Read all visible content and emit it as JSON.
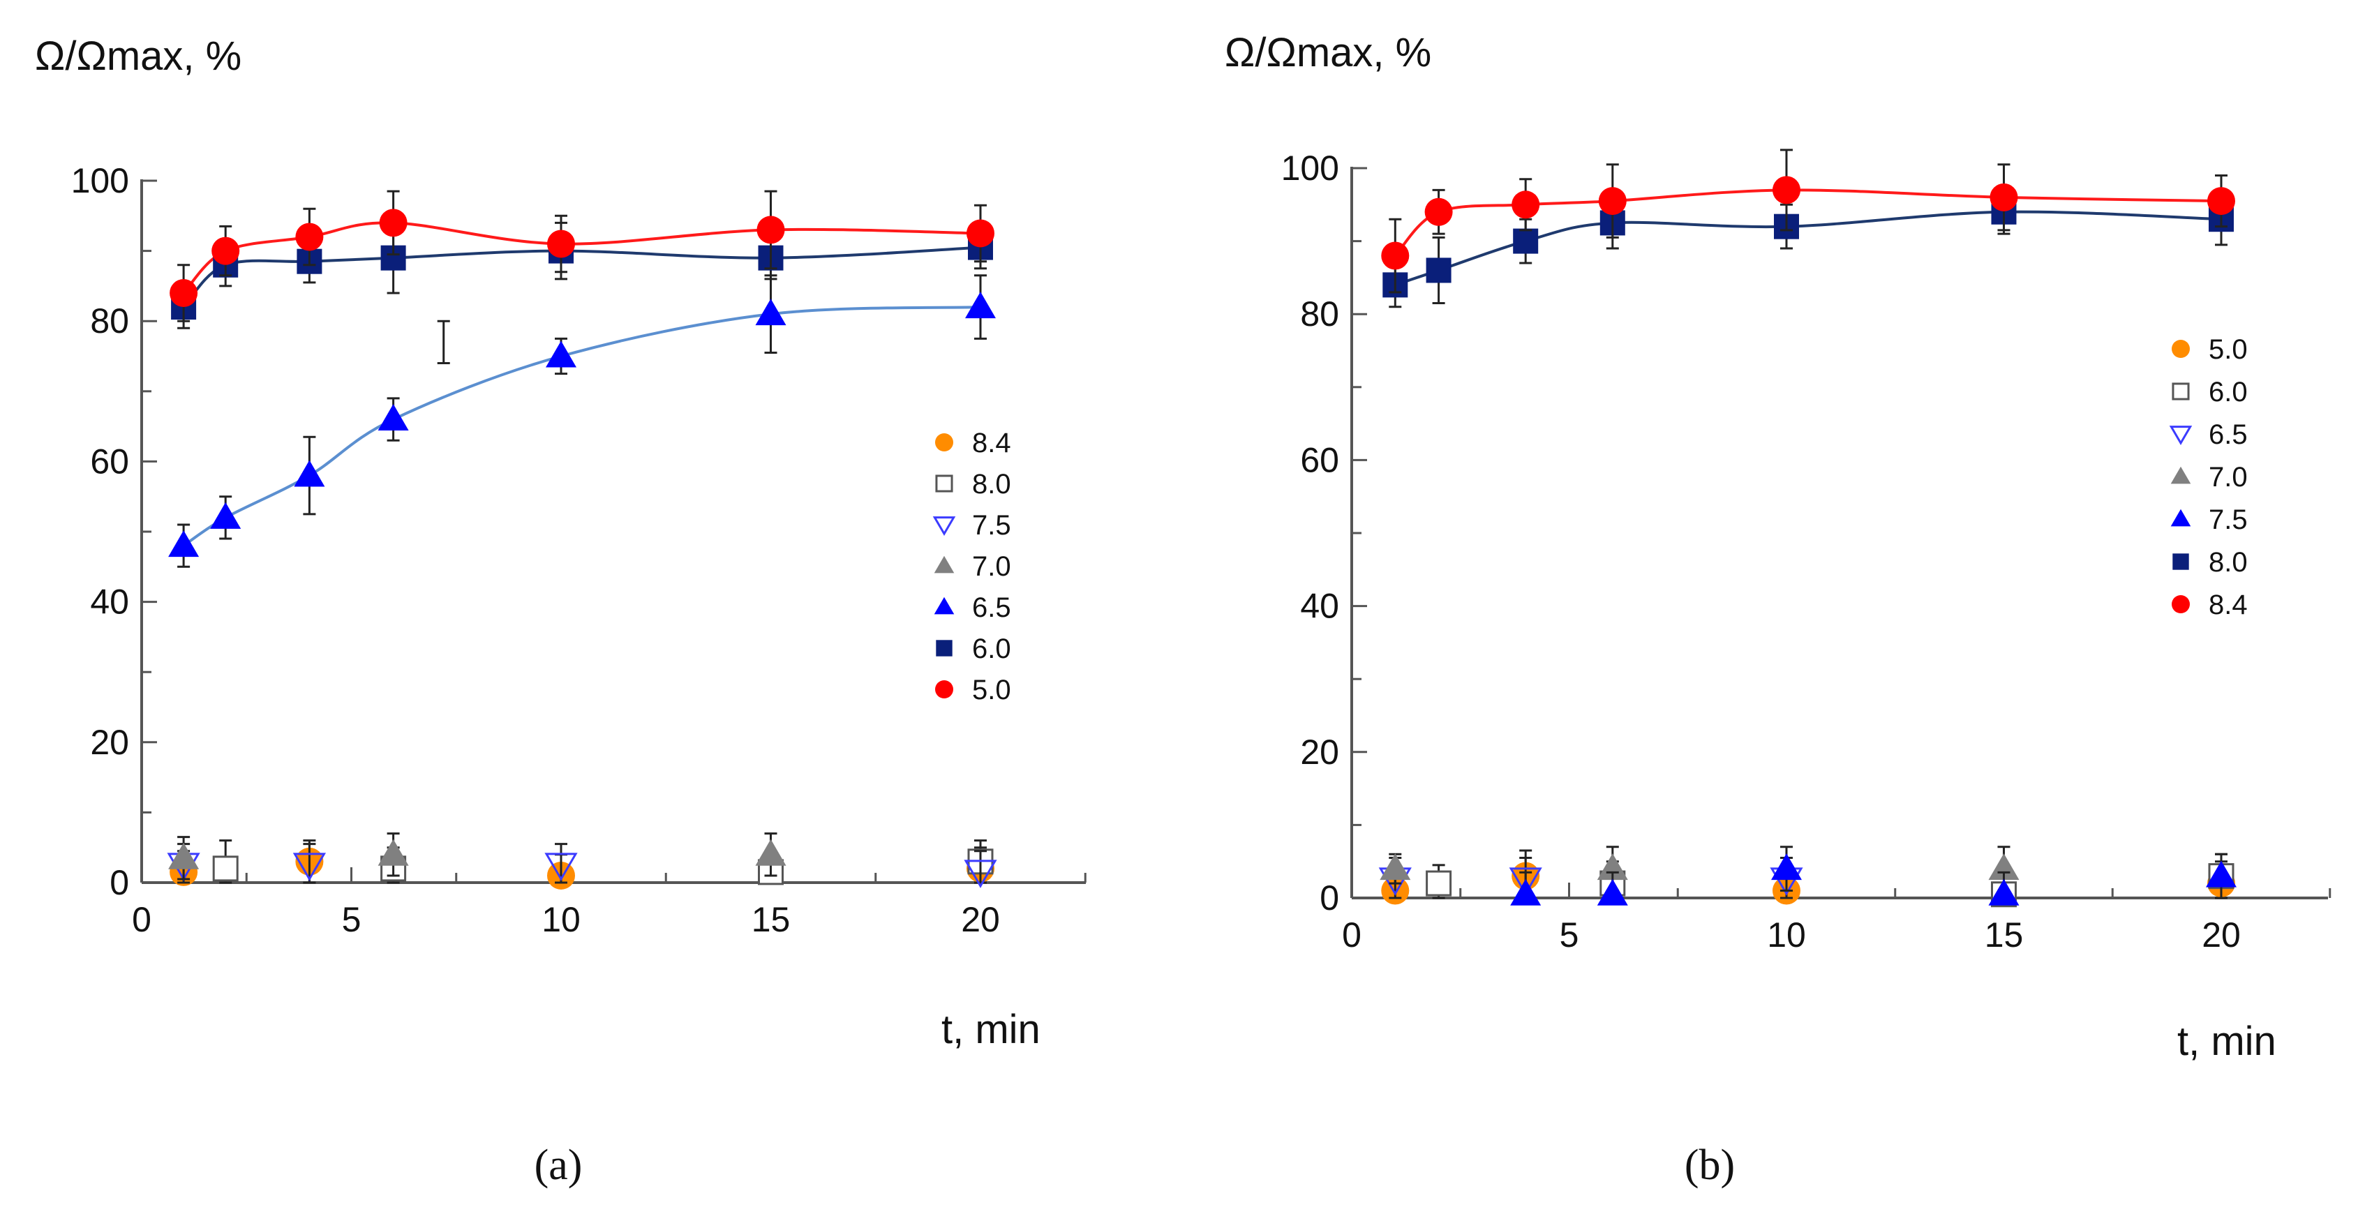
{
  "chart_data": [
    {
      "type": "scatter",
      "panel_label": "(a)",
      "ylabel": "Ω/Ωmax, %",
      "xlabel": "t, min",
      "xlim": [
        0,
        22.5
      ],
      "ylim": [
        0,
        100
      ],
      "xticks": [
        0,
        5,
        10,
        15,
        20
      ],
      "yticks": [
        0,
        20,
        40,
        60,
        80,
        100
      ],
      "legend_position": "right",
      "legend_order": [
        "8.4",
        "8.0",
        "7.5",
        "7.0",
        "6.5",
        "6.0",
        "5.0"
      ],
      "series": [
        {
          "name": "8.4",
          "marker": "circle",
          "color": "#ff8c00",
          "fit": false,
          "x": [
            1,
            4,
            10,
            20
          ],
          "y": [
            1.5,
            3,
            1,
            2
          ],
          "err": [
            3,
            3,
            3,
            3
          ]
        },
        {
          "name": "8.0",
          "marker": "square-open",
          "color": "#555555",
          "fit": false,
          "x": [
            2,
            6,
            15,
            20
          ],
          "y": [
            2,
            2,
            1.5,
            3
          ],
          "err": [
            4,
            3,
            3,
            3
          ]
        },
        {
          "name": "7.5",
          "marker": "triangle-down-open",
          "color": "#3b3bff",
          "fit": false,
          "x": [
            1,
            4,
            10,
            20
          ],
          "y": [
            2.5,
            2.5,
            2.5,
            1.5
          ],
          "err": [
            3,
            3,
            3,
            3
          ]
        },
        {
          "name": "7.0",
          "marker": "triangle",
          "color": "#808080",
          "fit": false,
          "x": [
            1,
            6,
            15
          ],
          "y": [
            3.5,
            4,
            4
          ],
          "err": [
            3,
            3,
            3
          ]
        },
        {
          "name": "6.5",
          "marker": "triangle",
          "color": "#0000ff",
          "fit": true,
          "fit_color": "#5b8fd0",
          "x": [
            1,
            2,
            4,
            6,
            10,
            15,
            20
          ],
          "y": [
            48,
            52,
            58,
            66,
            75,
            81,
            82
          ],
          "err": [
            3,
            3,
            5.5,
            3,
            2.5,
            5.5,
            4.5
          ]
        },
        {
          "name": "6.0",
          "marker": "square",
          "color": "#0a1f7a",
          "fit": true,
          "fit_color": "#1f3a6e",
          "x": [
            1,
            2,
            4,
            6,
            10,
            15,
            20
          ],
          "y": [
            82,
            88,
            88.5,
            89,
            90,
            89,
            90.5
          ],
          "err": [
            3,
            3,
            3,
            5,
            4,
            3,
            3
          ]
        },
        {
          "name": "5.0",
          "marker": "circle",
          "color": "#ff0000",
          "fit": true,
          "fit_color": "#ff1a1a",
          "x": [
            1,
            2,
            4,
            6,
            10,
            15,
            20
          ],
          "y": [
            84,
            90,
            92,
            94,
            91,
            93,
            92.5
          ],
          "err": [
            4,
            3.5,
            4,
            4.5,
            4,
            5.5,
            4
          ]
        }
      ],
      "stray_errorbar": {
        "x": 7.2,
        "y_low": 74,
        "y_high": 80
      }
    },
    {
      "type": "scatter",
      "panel_label": "(b)",
      "ylabel": "Ω/Ωmax, %",
      "xlabel": "t, min",
      "xlim": [
        0,
        22.5
      ],
      "ylim": [
        0,
        100
      ],
      "xticks": [
        0,
        5,
        10,
        15,
        20
      ],
      "yticks": [
        0,
        20,
        40,
        60,
        80,
        100
      ],
      "legend_position": "right",
      "legend_order": [
        "5.0",
        "6.0",
        "6.5",
        "7.0",
        "7.5",
        "8.0",
        "8.4"
      ],
      "series": [
        {
          "name": "5.0",
          "marker": "circle",
          "color": "#ff8c00",
          "fit": false,
          "x": [
            1,
            4,
            10,
            20
          ],
          "y": [
            1,
            3,
            1,
            2
          ],
          "err": [
            3,
            3.5,
            3,
            3
          ]
        },
        {
          "name": "6.0",
          "marker": "square-open",
          "color": "#555555",
          "fit": false,
          "x": [
            2,
            6,
            15,
            20
          ],
          "y": [
            2,
            2,
            0.5,
            3
          ],
          "err": [
            2.5,
            3,
            3,
            3
          ]
        },
        {
          "name": "6.5",
          "marker": "triangle-down-open",
          "color": "#3b3bff",
          "fit": false,
          "x": [
            1,
            4,
            10
          ],
          "y": [
            2.5,
            2.5,
            2.5
          ],
          "err": [
            3,
            3,
            3
          ]
        },
        {
          "name": "7.0",
          "marker": "triangle",
          "color": "#808080",
          "fit": false,
          "x": [
            1,
            6,
            15
          ],
          "y": [
            4,
            4,
            4
          ],
          "err": [
            2,
            3,
            3
          ]
        },
        {
          "name": "7.5",
          "marker": "triangle",
          "color": "#0000ff",
          "fit": false,
          "x": [
            4,
            6,
            10,
            15,
            20
          ],
          "y": [
            0.5,
            0.5,
            4,
            0.5,
            3
          ],
          "err": [
            3,
            3,
            3,
            3,
            3
          ]
        },
        {
          "name": "8.0",
          "marker": "square",
          "color": "#0a1f7a",
          "fit": true,
          "fit_color": "#1f3a6e",
          "x": [
            1,
            2,
            4,
            6,
            10,
            15,
            20
          ],
          "y": [
            84,
            86,
            90,
            92.5,
            92,
            94,
            93
          ],
          "err": [
            3,
            4.5,
            3,
            3.5,
            3,
            3,
            3.5
          ]
        },
        {
          "name": "8.4",
          "marker": "circle",
          "color": "#ff0000",
          "fit": true,
          "fit_color": "#ff1a1a",
          "x": [
            1,
            2,
            4,
            6,
            10,
            15,
            20
          ],
          "y": [
            88,
            94,
            95,
            95.5,
            97,
            96,
            95.5
          ],
          "err": [
            5,
            3,
            3.5,
            5,
            5.5,
            4.5,
            3.5
          ]
        }
      ]
    }
  ]
}
